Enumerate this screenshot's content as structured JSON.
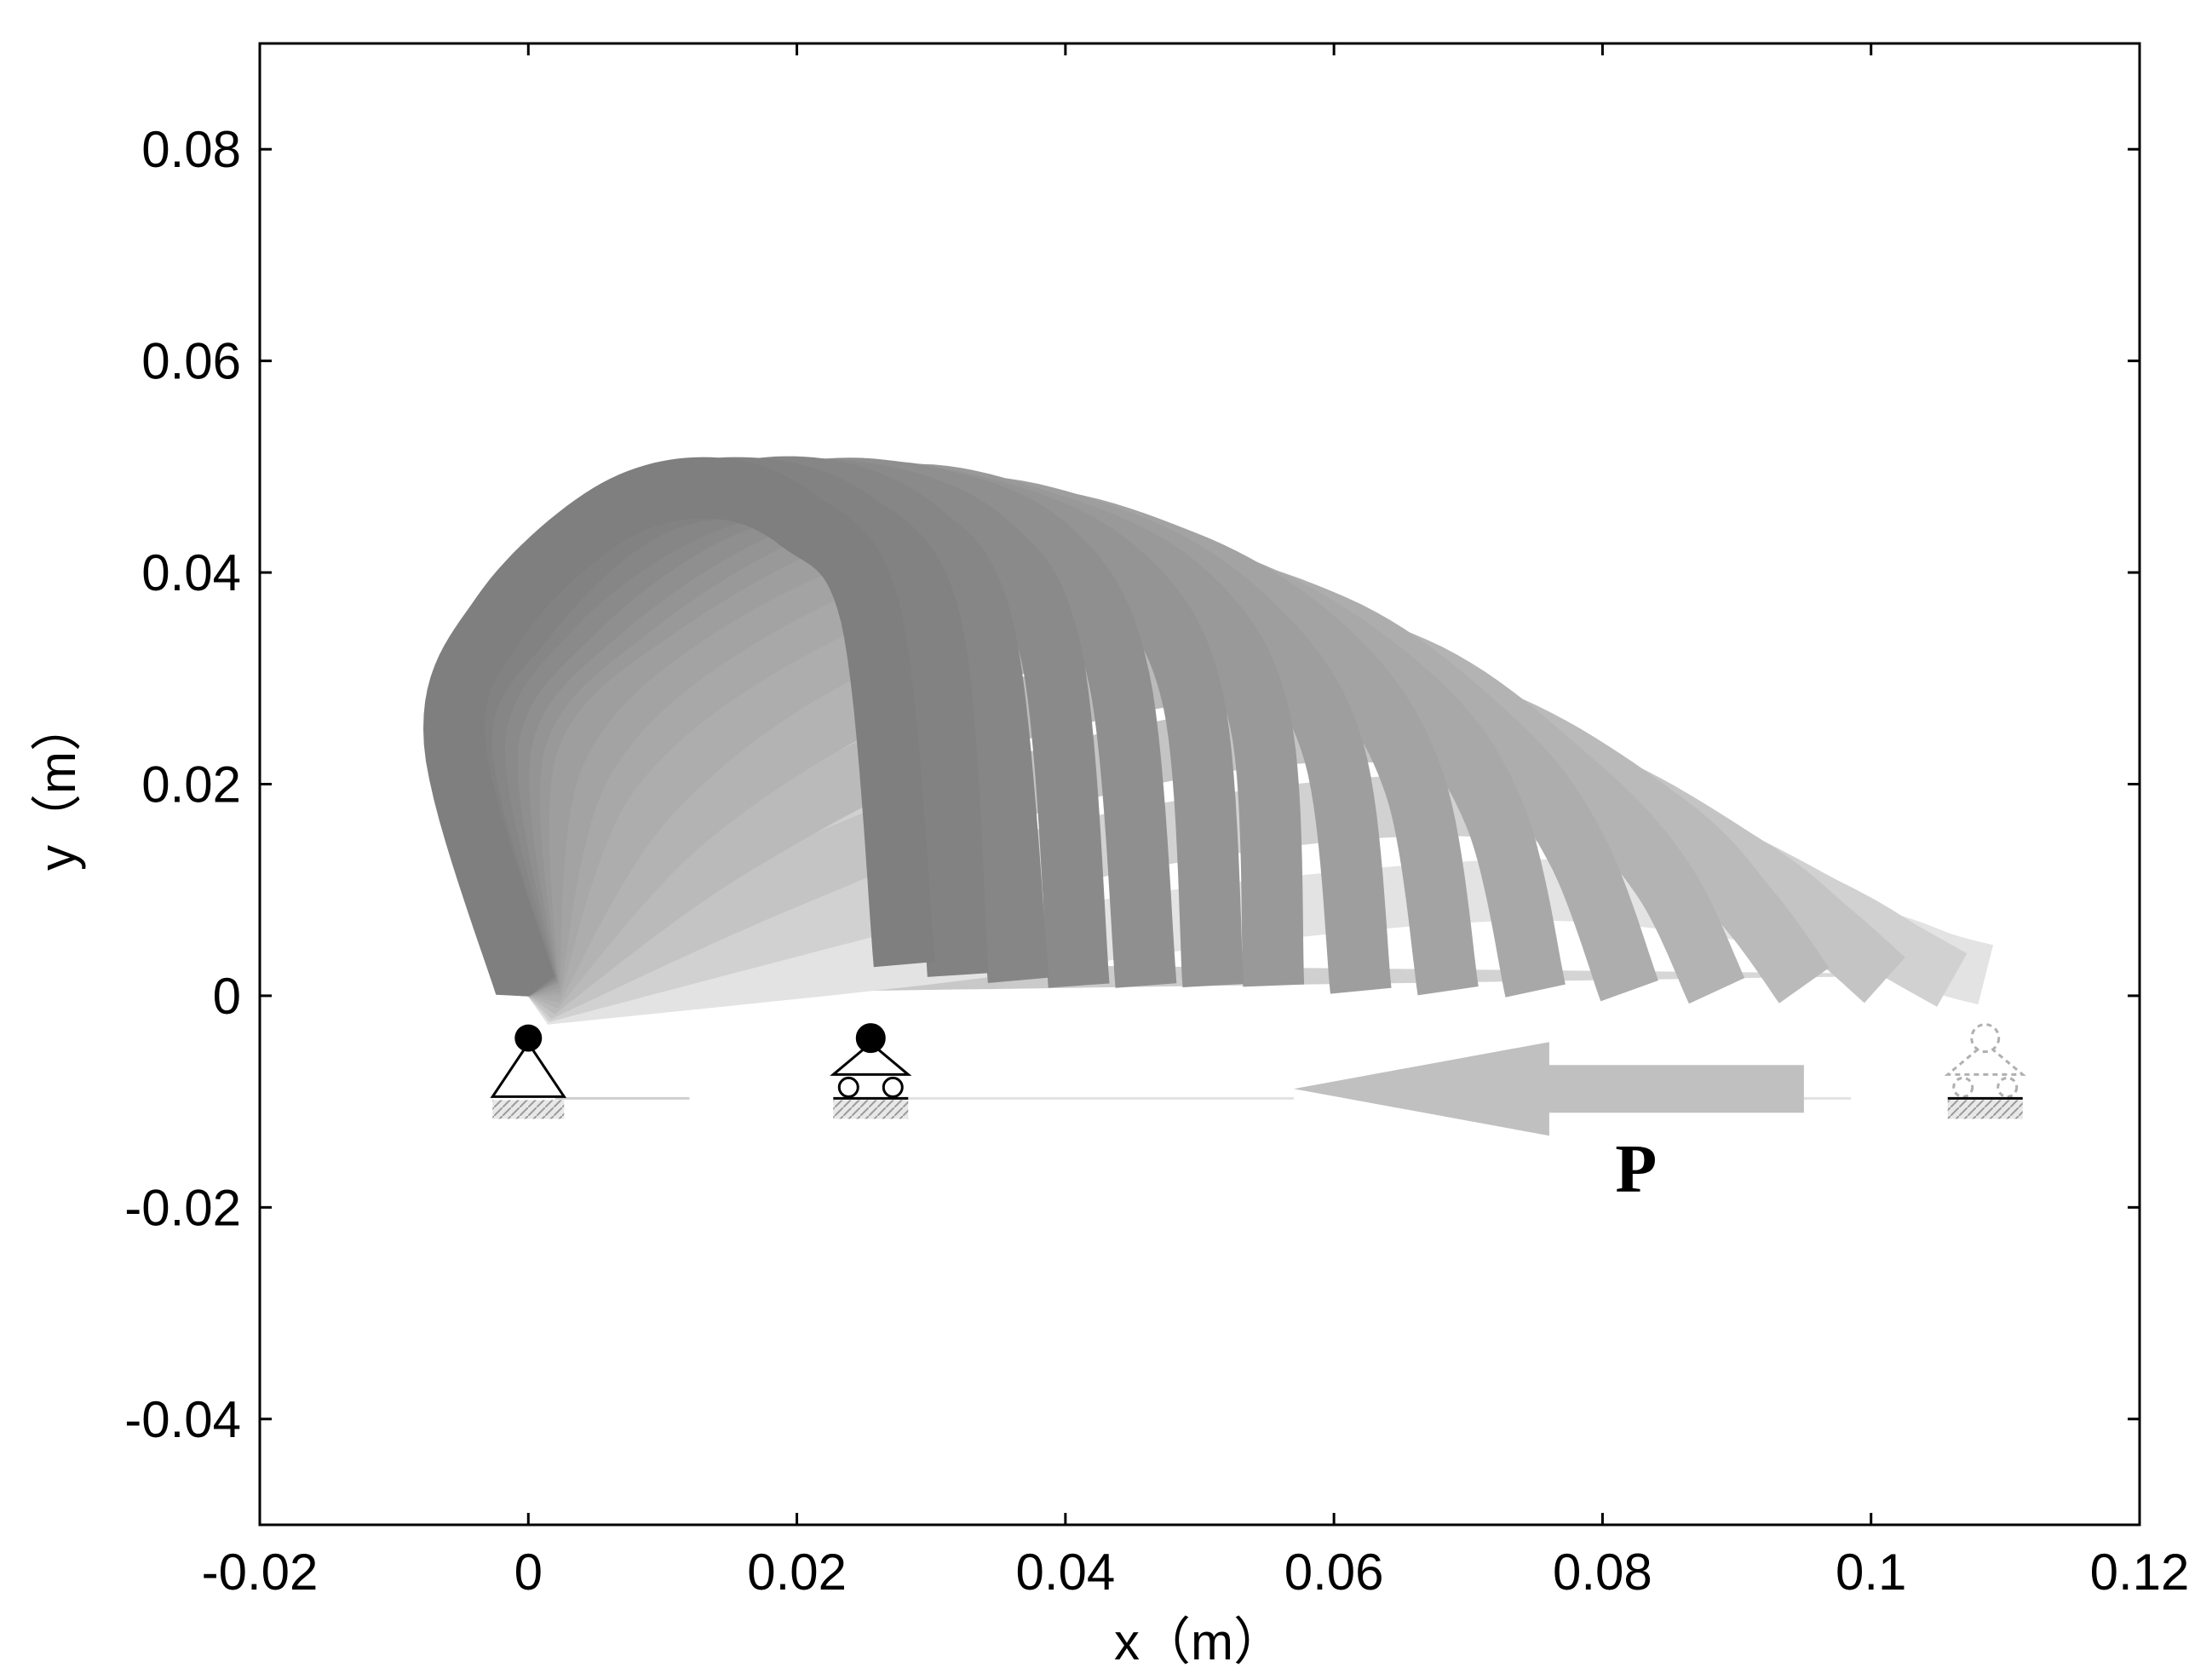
{
  "chart_data": {
    "type": "line",
    "title": "",
    "xlabel": "x（m）",
    "ylabel": "y（m）",
    "xlim": [
      -0.02,
      0.12
    ],
    "ylim": [
      -0.05,
      0.09
    ],
    "xticks": [
      -0.02,
      0,
      0.02,
      0.04,
      0.06,
      0.08,
      0.1,
      0.12
    ],
    "yticks": [
      -0.04,
      -0.02,
      0,
      0.02,
      0.04,
      0.06,
      0.08
    ],
    "xtick_labels": [
      "-0.02",
      "0",
      "0.02",
      "0.04",
      "0.06",
      "0.08",
      "0.1",
      "0.12"
    ],
    "ytick_labels": [
      "-0.04",
      "-0.02",
      "0",
      "0.02",
      "0.04",
      "0.06",
      "0.08"
    ],
    "grid": false,
    "legend": "none",
    "series": [
      {
        "x": [
          0.0,
          -0.0055,
          -0.002,
          0.006,
          0.0135,
          0.02,
          0.0255,
          0.028
        ],
        "y": [
          0.0,
          0.024,
          0.036,
          0.0455,
          0.048,
          0.045,
          0.036,
          0.003
        ],
        "shade": "#7f7f7f"
      },
      {
        "x": [
          0.0,
          -0.005,
          0.0,
          0.008,
          0.016,
          0.024,
          0.03,
          0.032
        ],
        "y": [
          0.0,
          0.024,
          0.036,
          0.0455,
          0.048,
          0.045,
          0.035,
          0.002
        ],
        "shade": "#828282"
      },
      {
        "x": [
          0.0,
          -0.004,
          0.002,
          0.012,
          0.021,
          0.029,
          0.034,
          0.0365
        ],
        "y": [
          0.0,
          0.024,
          0.037,
          0.046,
          0.048,
          0.044,
          0.034,
          0.0015
        ],
        "shade": "#868686"
      },
      {
        "x": [
          0.0,
          -0.003,
          0.004,
          0.015,
          0.025,
          0.034,
          0.039,
          0.041
        ],
        "y": [
          0.0,
          0.024,
          0.037,
          0.0465,
          0.0475,
          0.043,
          0.032,
          0.001
        ],
        "shade": "#8a8a8a"
      },
      {
        "x": [
          0.0,
          -0.002,
          0.006,
          0.019,
          0.03,
          0.039,
          0.044,
          0.046
        ],
        "y": [
          0.0,
          0.024,
          0.037,
          0.047,
          0.047,
          0.042,
          0.03,
          0.001
        ],
        "shade": "#8f8f8f"
      },
      {
        "x": [
          0.0,
          -0.001,
          0.008,
          0.022,
          0.034,
          0.044,
          0.0495,
          0.051
        ],
        "y": [
          0.0,
          0.024,
          0.037,
          0.047,
          0.046,
          0.04,
          0.028,
          0.001
        ],
        "shade": "#949494"
      },
      {
        "x": [
          0.0,
          0.0,
          0.01,
          0.026,
          0.039,
          0.049,
          0.0545,
          0.0555
        ],
        "y": [
          0.0,
          0.024,
          0.037,
          0.047,
          0.0445,
          0.038,
          0.026,
          0.001
        ],
        "shade": "#999999"
      },
      {
        "x": [
          0.0,
          0.002,
          0.013,
          0.03,
          0.044,
          0.054,
          0.06,
          0.062
        ],
        "y": [
          0.0,
          0.023,
          0.037,
          0.046,
          0.043,
          0.035,
          0.023,
          0.0005
        ],
        "shade": "#9e9e9e"
      },
      {
        "x": [
          0.0,
          0.004,
          0.016,
          0.034,
          0.049,
          0.06,
          0.066,
          0.0685
        ],
        "y": [
          0.0,
          0.022,
          0.036,
          0.045,
          0.041,
          0.032,
          0.02,
          0.0005
        ],
        "shade": "#a3a3a3"
      },
      {
        "x": [
          0.0,
          0.006,
          0.02,
          0.038,
          0.054,
          0.066,
          0.072,
          0.075
        ],
        "y": [
          0.0,
          0.021,
          0.035,
          0.043,
          0.038,
          0.028,
          0.017,
          0.0005
        ],
        "shade": "#a8a8a8"
      },
      {
        "x": [
          0.0,
          0.009,
          0.024,
          0.043,
          0.06,
          0.072,
          0.078,
          0.082
        ],
        "y": [
          0.0,
          0.019,
          0.033,
          0.04,
          0.035,
          0.024,
          0.014,
          0.0005
        ],
        "shade": "#adadad"
      },
      {
        "x": [
          0.0,
          0.012,
          0.029,
          0.049,
          0.066,
          0.078,
          0.0845,
          0.0885
        ],
        "y": [
          0.0,
          0.017,
          0.03,
          0.036,
          0.031,
          0.02,
          0.011,
          0.0005
        ],
        "shade": "#b3b3b3"
      },
      {
        "x": [
          0.0,
          0.015,
          0.034,
          0.055,
          0.072,
          0.085,
          0.091,
          0.095
        ],
        "y": [
          0.0,
          0.014,
          0.026,
          0.031,
          0.026,
          0.016,
          0.008,
          0.001
        ],
        "shade": "#bababa"
      },
      {
        "x": [
          0.0,
          0.019,
          0.04,
          0.061,
          0.078,
          0.091,
          0.097,
          0.101
        ],
        "y": [
          0.0,
          0.011,
          0.021,
          0.025,
          0.021,
          0.012,
          0.006,
          0.0015
        ],
        "shade": "#c4c4c4"
      },
      {
        "x": [
          0.0,
          0.024,
          0.046,
          0.068,
          0.085,
          0.097,
          0.1025,
          0.106
        ],
        "y": [
          0.0,
          0.008,
          0.015,
          0.018,
          0.015,
          0.008,
          0.004,
          0.0015
        ],
        "shade": "#d1d1d1"
      },
      {
        "x": [
          0.0,
          0.03,
          0.054,
          0.075,
          0.091,
          0.101,
          0.1055,
          0.1085
        ],
        "y": [
          0.0,
          0.004,
          0.008,
          0.01,
          0.008,
          0.005,
          0.003,
          0.002
        ],
        "shade": "#e3e3e3"
      }
    ],
    "annotations": [
      {
        "text": "P",
        "x": 0.0825,
        "y": -0.0185
      }
    ],
    "supports": [
      {
        "type": "pin",
        "x": 0.0,
        "shade": "#000000"
      },
      {
        "type": "roller",
        "x": 0.0255,
        "shade": "#000000"
      },
      {
        "type": "roller-dashed",
        "x": 0.1085,
        "shade": "#b0b0b0"
      }
    ],
    "force_arrow": {
      "from_x": 0.095,
      "to_x": 0.057,
      "y": -0.0088,
      "shade": "#c0c0c0"
    },
    "strip_width_m": 0.0045
  }
}
